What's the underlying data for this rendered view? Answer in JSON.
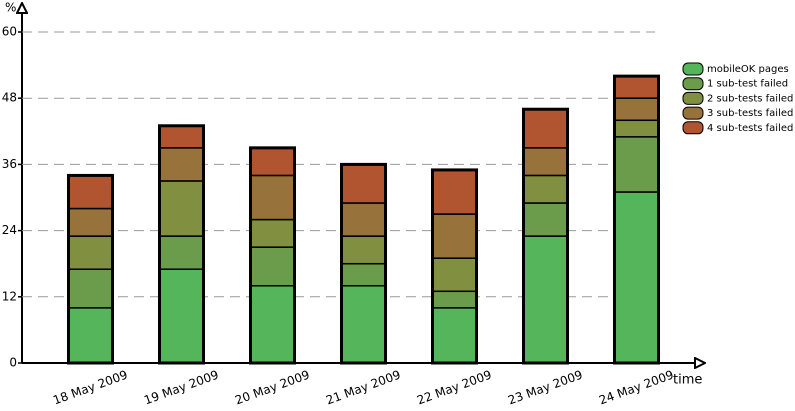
{
  "chart_data": {
    "type": "bar",
    "stacked": true,
    "y_label": "%",
    "x_label": "time",
    "categories": [
      "18 May 2009",
      "19 May 2009",
      "20 May 2009",
      "21 May 2009",
      "22 May 2009",
      "23 May 2009",
      "24 May 2009"
    ],
    "series": [
      {
        "name": "mobileOK pages",
        "color": "#55b55a",
        "values": [
          10,
          17,
          14,
          14,
          10,
          23,
          31
        ]
      },
      {
        "name": "1 sub-test failed",
        "color": "#6b9c4b",
        "values": [
          7,
          6,
          7,
          4,
          3,
          6,
          10
        ]
      },
      {
        "name": "2 sub-tests failed",
        "color": "#808f40",
        "values": [
          6,
          10,
          5,
          5,
          6,
          5,
          3
        ]
      },
      {
        "name": "3 sub-tests failed",
        "color": "#98723b",
        "values": [
          5,
          6,
          8,
          6,
          8,
          5,
          4
        ]
      },
      {
        "name": "4 sub-tests failed",
        "color": "#b0552f",
        "values": [
          6,
          4,
          5,
          7,
          8,
          7,
          4
        ]
      }
    ],
    "ylim": [
      0,
      60
    ],
    "yticks": [
      0,
      12,
      24,
      36,
      48,
      60
    ],
    "grid": true,
    "legend": "right"
  }
}
